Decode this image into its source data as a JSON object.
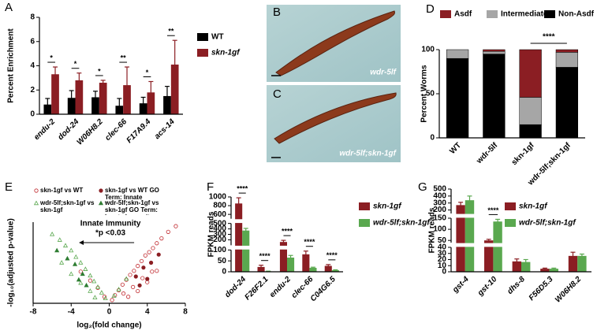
{
  "chart_data": [
    {
      "type": "bar",
      "panel": "A",
      "y_label": "Percent Enrichment",
      "categories": [
        "endu-2",
        "dod-24",
        "W06H8.2",
        "clec-66",
        "F17A9.4",
        "acs-14"
      ],
      "series": [
        {
          "name": "WT",
          "color": "#000000",
          "values": [
            0.8,
            1.35,
            1.4,
            0.7,
            0.9,
            1.5
          ],
          "errors": [
            0.5,
            0.6,
            0.5,
            0.6,
            0.5,
            0.8
          ]
        },
        {
          "name": "skn-1gf",
          "color": "#8b1e23",
          "values": [
            3.3,
            2.8,
            2.6,
            2.4,
            1.8,
            4.1
          ],
          "errors": [
            0.6,
            0.6,
            0.2,
            1.5,
            0.9,
            2.0
          ]
        }
      ],
      "significance": [
        "*",
        "*",
        "*",
        "**",
        "*",
        "**"
      ],
      "ylim": [
        0,
        8
      ],
      "yticks": [
        0,
        2,
        4,
        6,
        8
      ]
    },
    {
      "type": "stacked_bar",
      "panel": "D",
      "y_label": "Percent Worms",
      "categories": [
        "WT",
        "wdr-5lf",
        "skn-1gf",
        "wdr-5lf;skn-1gf"
      ],
      "series": [
        {
          "name": "Asdf",
          "color": "#8b1e23",
          "values": [
            0,
            2,
            54,
            3
          ]
        },
        {
          "name": "Intermediate",
          "color": "#a6a6a6",
          "values": [
            10,
            3,
            31,
            17
          ]
        },
        {
          "name": "Non-Asdf",
          "color": "#000000",
          "values": [
            90,
            95,
            15,
            80
          ]
        }
      ],
      "comparison": {
        "label": "****",
        "between": [
          "skn-1gf",
          "wdr-5lf;skn-1gf"
        ]
      },
      "ylim": [
        0,
        100
      ],
      "yticks": [
        0,
        50,
        100
      ]
    },
    {
      "type": "scatter",
      "panel": "E",
      "y_label": "-log₁₀(adjusted p-value)",
      "x_label": "log₂(fold change)",
      "annotations": [
        "Innate Immunity",
        "*p <0.03"
      ],
      "series": [
        {
          "name": "skn-1gf vs WT",
          "color": "#c0282d",
          "marker": "circle",
          "filled": false,
          "x": [
            0.3,
            0.6,
            1.0,
            1.4,
            1.8,
            2.2,
            2.6,
            3.0,
            3.4,
            3.8,
            4.2,
            4.6,
            5.0,
            5.5,
            6.2,
            7.0,
            1.5,
            2.5,
            3.5,
            4.5,
            -0.5,
            -1.2,
            -2.0,
            -3.0,
            2.0,
            3.0,
            4.0,
            5.0
          ],
          "y": [
            0.4,
            1.0,
            1.6,
            2.3,
            2.9,
            3.5,
            4.0,
            4.6,
            5.2,
            5.9,
            6.3,
            6.8,
            7.4,
            8.0,
            8.8,
            9.5,
            1.2,
            2.0,
            3.1,
            3.9,
            0.8,
            1.9,
            2.8,
            3.9,
            0.8,
            1.5,
            2.6,
            4.0
          ]
        },
        {
          "name": "wdr-5lf;skn-1gf vs skn-1gf",
          "color": "#5aa84f",
          "marker": "triangle",
          "filled": false,
          "x": [
            -0.4,
            -0.8,
            -1.2,
            -1.6,
            -2.0,
            -2.5,
            -3.0,
            -3.5,
            -4.0,
            -4.6,
            -5.2,
            -6.0,
            -2.0,
            -3.0,
            -4.0,
            -5.0,
            0.5,
            1.0,
            1.8,
            -1.5
          ],
          "y": [
            0.6,
            1.3,
            2.0,
            2.7,
            3.4,
            4.2,
            5.0,
            5.7,
            6.5,
            7.1,
            7.8,
            8.5,
            1.5,
            2.5,
            3.6,
            5.0,
            0.9,
            1.7,
            3.0,
            0.7
          ]
        },
        {
          "name": "skn-1gf vs WT GO Term: Innate Immunity",
          "color": "#8b1e23",
          "marker": "circle",
          "filled": true,
          "x": [
            2.8,
            3.6,
            4.4,
            3.2,
            5.2,
            4.0
          ],
          "y": [
            3.3,
            4.4,
            5.0,
            2.2,
            6.0,
            3.0
          ]
        },
        {
          "name": "wdr-5lf;skn-1gf vs skn-1gf GO Term: Innate Immunity",
          "color": "#2e7d32",
          "marker": "triangle",
          "filled": true,
          "x": [
            -2.8,
            -3.6,
            -4.4,
            -2.4,
            -5.5,
            -3.2
          ],
          "y": [
            3.6,
            4.8,
            5.5,
            2.2,
            6.5,
            2.9
          ]
        }
      ],
      "xlim": [
        -8,
        8
      ],
      "xticks": [
        -8,
        -4,
        0,
        4,
        8
      ],
      "ylim": [
        0,
        10
      ]
    },
    {
      "type": "bar",
      "panel": "F",
      "y_label": "FPKM reads",
      "categories": [
        "dod-24",
        "F26F2.1",
        "endu-2",
        "clec-66",
        "C04G6.5"
      ],
      "series": [
        {
          "name": "skn-1gf",
          "color": "#8b1e23",
          "values": [
            850,
            22,
            160,
            80,
            27
          ],
          "errors": [
            130,
            8,
            30,
            15,
            6
          ]
        },
        {
          "name": "wdr-5lf;skn-1gf",
          "color": "#5aa84f",
          "values": [
            370,
            2,
            65,
            18,
            7
          ],
          "errors": [
            40,
            1,
            10,
            3,
            2
          ]
        }
      ],
      "significance": [
        "****",
        "****",
        "****",
        "****",
        "****"
      ],
      "ylim": [
        0,
        1000
      ],
      "y_segments": [
        [
          0,
          100
        ],
        [
          100,
          500
        ],
        [
          500,
          1000
        ]
      ],
      "yticks": [
        0,
        50,
        100,
        200,
        300,
        400,
        500,
        600,
        800,
        1000
      ]
    },
    {
      "type": "bar",
      "panel": "G",
      "y_label": "FPKM reads",
      "categories": [
        "gst-4",
        "gst-10",
        "dhs-8",
        "F56D5.3",
        "W06H8.2"
      ],
      "series": [
        {
          "name": "skn-1gf",
          "color": "#8b1e23",
          "values": [
            270,
            50,
            17,
            5,
            26
          ],
          "errors": [
            40,
            5,
            4,
            1,
            6
          ]
        },
        {
          "name": "wdr-5lf;skn-1gf",
          "color": "#5aa84f",
          "values": [
            340,
            135,
            16,
            5,
            26
          ],
          "errors": [
            60,
            10,
            4,
            1,
            3
          ]
        }
      ],
      "significance": [
        null,
        "****",
        null,
        null,
        null
      ],
      "ylim": [
        0,
        500
      ],
      "y_segments": [
        [
          0,
          40
        ],
        [
          40,
          150
        ],
        [
          150,
          500
        ]
      ],
      "yticks": [
        0,
        10,
        20,
        30,
        40,
        50,
        100,
        150,
        200,
        300,
        400,
        500
      ]
    }
  ],
  "images": [
    {
      "panel": "B",
      "caption": "wdr-5lf"
    },
    {
      "panel": "C",
      "caption": "wdr-5lf;skn-1gf"
    }
  ]
}
